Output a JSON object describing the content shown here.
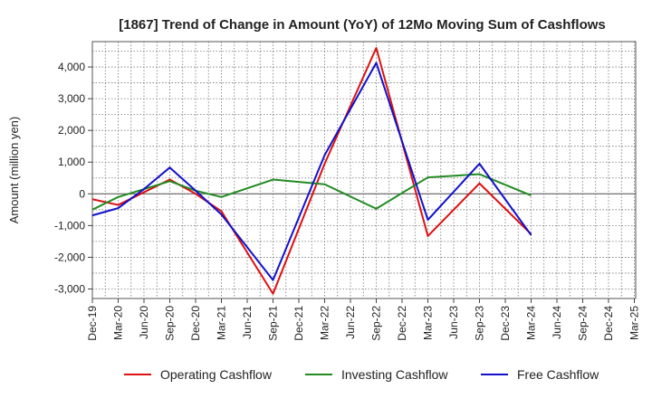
{
  "chart_data": {
    "type": "line",
    "title": "[1867]  Trend of Change in Amount (YoY) of 12Mo Moving Sum of Cashflows",
    "xlabel": "",
    "ylabel": "Amount (million yen)",
    "ylim": [
      -3300,
      4800
    ],
    "yticks": [
      -3000,
      -2000,
      -1000,
      0,
      1000,
      2000,
      3000,
      4000
    ],
    "ytick_labels": [
      "-3,000",
      "-2,000",
      "-1,000",
      "0",
      "1,000",
      "2,000",
      "3,000",
      "4,000"
    ],
    "categories": [
      "Dec-19",
      "Mar-20",
      "Jun-20",
      "Sep-20",
      "Dec-20",
      "Mar-21",
      "Jun-21",
      "Sep-21",
      "Dec-21",
      "Mar-22",
      "Jun-22",
      "Sep-22",
      "Dec-22",
      "Mar-23",
      "Jun-23",
      "Sep-23",
      "Dec-23",
      "Mar-24",
      "Jun-24",
      "Sep-24",
      "Dec-24",
      "Mar-25"
    ],
    "grid": true,
    "legend_position": "bottom",
    "series": [
      {
        "name": "Operating Cashflow",
        "color": "#dd1111",
        "values": [
          -170,
          -350,
          50,
          450,
          0,
          -550,
          null,
          -3150,
          null,
          950,
          null,
          4600,
          null,
          -1330,
          null,
          330,
          null,
          -1270,
          null,
          null,
          null,
          null
        ]
      },
      {
        "name": "Investing Cashflow",
        "color": "#228b22",
        "values": [
          -500,
          -100,
          150,
          400,
          100,
          -100,
          null,
          450,
          null,
          300,
          null,
          -470,
          null,
          520,
          null,
          620,
          null,
          -50,
          null,
          null,
          null,
          null
        ]
      },
      {
        "name": "Free Cashflow",
        "color": "#1111cc",
        "values": [
          -680,
          -450,
          150,
          830,
          100,
          -650,
          null,
          -2720,
          null,
          1220,
          null,
          4130,
          null,
          -820,
          null,
          950,
          null,
          -1300,
          null,
          null,
          null,
          null
        ]
      }
    ]
  }
}
